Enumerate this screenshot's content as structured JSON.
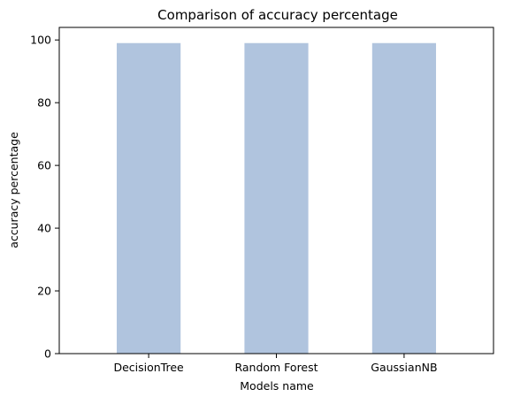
{
  "chart_data": {
    "type": "bar",
    "title": "Comparison of accuracy percentage",
    "xlabel": "Models name",
    "ylabel": "accuracy percentage",
    "categories": [
      "DecisionTree",
      "Random Forest",
      "GaussianNB"
    ],
    "values": [
      99,
      99,
      99
    ],
    "ylim": [
      0,
      104
    ],
    "yticks": [
      0,
      20,
      40,
      60,
      80,
      100
    ],
    "grid": false,
    "bar_color": "#b0c4de"
  }
}
